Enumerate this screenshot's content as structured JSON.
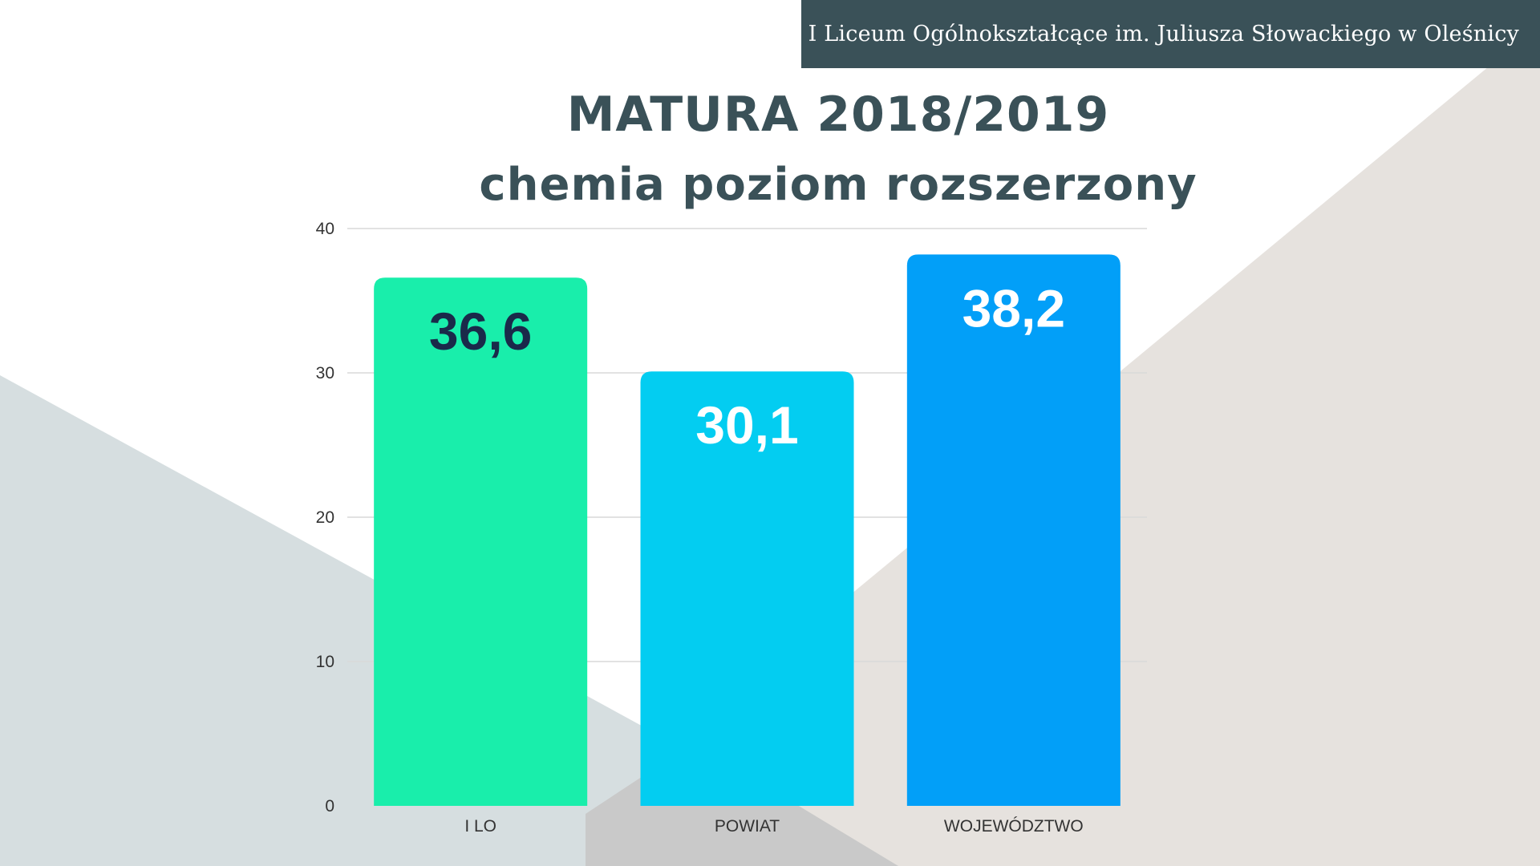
{
  "header": {
    "school": "I Liceum Ogólnokształcące im. Juliusza Słowackiego w Oleśnicy"
  },
  "colors": {
    "header_bg": "#3a5158",
    "title": "#3a5158",
    "bg_grey": "#d6dee0",
    "bg_beige": "#e6e2de",
    "bg_overlap": "#c9c9c9"
  },
  "chart_data": {
    "type": "bar",
    "title": "MATURA 2018/2019",
    "subtitle": "chemia poziom rozszerzony",
    "categories": [
      "I LO",
      "POWIAT",
      "WOJEWÓDZTWO"
    ],
    "values": [
      36.6,
      30.1,
      38.2
    ],
    "value_labels": [
      "36,6",
      "30,1",
      "38,2"
    ],
    "bar_colors": [
      "#19eeab",
      "#03cdf1",
      "#029ff8"
    ],
    "label_colors": [
      "#1a2a4a",
      "#ffffff",
      "#ffffff"
    ],
    "ylim": [
      0,
      40
    ],
    "yticks": [
      0,
      10,
      20,
      30,
      40
    ],
    "xlabel": "",
    "ylabel": "",
    "grid": true,
    "legend": "none"
  }
}
